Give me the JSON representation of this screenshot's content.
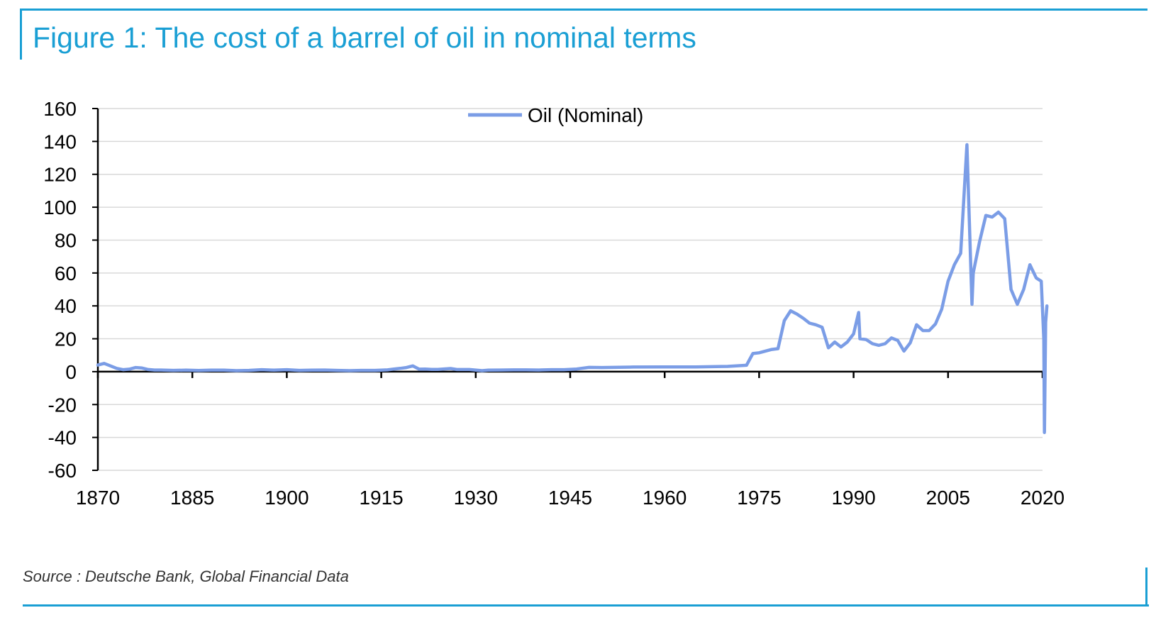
{
  "figure": {
    "title": "Figure 1: The cost of a barrel of oil in nominal terms",
    "source": "Source : Deutsche Bank, Global Financial Data",
    "accent_color": "#1a9fd4"
  },
  "chart_data": {
    "type": "line",
    "title": "Figure 1: The cost of a barrel of oil in nominal terms",
    "xlabel": "",
    "ylabel": "",
    "xlim": [
      1870,
      2020
    ],
    "ylim": [
      -60,
      160
    ],
    "x_ticks": [
      1870,
      1885,
      1900,
      1915,
      1930,
      1945,
      1960,
      1975,
      1990,
      2005,
      2020
    ],
    "y_ticks": [
      160,
      140,
      120,
      100,
      80,
      60,
      40,
      20,
      0,
      -20,
      -40,
      -60
    ],
    "grid": true,
    "legend_position": "top-center",
    "series": [
      {
        "name": "Oil (Nominal)",
        "color": "#7b9de6",
        "points": [
          [
            1870,
            4
          ],
          [
            1871,
            5
          ],
          [
            1872,
            3.5
          ],
          [
            1873,
            2
          ],
          [
            1874,
            1.2
          ],
          [
            1875,
            1.5
          ],
          [
            1876,
            2.5
          ],
          [
            1877,
            2.2
          ],
          [
            1878,
            1.3
          ],
          [
            1879,
            1
          ],
          [
            1880,
            1
          ],
          [
            1882,
            0.8
          ],
          [
            1884,
            0.9
          ],
          [
            1886,
            0.7
          ],
          [
            1888,
            0.9
          ],
          [
            1890,
            0.9
          ],
          [
            1892,
            0.6
          ],
          [
            1894,
            0.8
          ],
          [
            1896,
            1.2
          ],
          [
            1898,
            0.9
          ],
          [
            1900,
            1.2
          ],
          [
            1902,
            0.8
          ],
          [
            1904,
            0.9
          ],
          [
            1906,
            1
          ],
          [
            1908,
            0.8
          ],
          [
            1910,
            0.6
          ],
          [
            1912,
            0.8
          ],
          [
            1914,
            0.8
          ],
          [
            1916,
            1.1
          ],
          [
            1917,
            1.6
          ],
          [
            1918,
            2
          ],
          [
            1919,
            2.5
          ],
          [
            1920,
            3.5
          ],
          [
            1921,
            1.5
          ],
          [
            1922,
            1.6
          ],
          [
            1923,
            1.4
          ],
          [
            1924,
            1.4
          ],
          [
            1926,
            1.9
          ],
          [
            1927,
            1.3
          ],
          [
            1929,
            1.3
          ],
          [
            1931,
            0.6
          ],
          [
            1932,
            0.9
          ],
          [
            1934,
            1
          ],
          [
            1936,
            1.1
          ],
          [
            1938,
            1.1
          ],
          [
            1940,
            1
          ],
          [
            1942,
            1.2
          ],
          [
            1944,
            1.2
          ],
          [
            1946,
            1.6
          ],
          [
            1948,
            2.6
          ],
          [
            1950,
            2.5
          ],
          [
            1955,
            2.8
          ],
          [
            1960,
            2.9
          ],
          [
            1965,
            2.9
          ],
          [
            1970,
            3.2
          ],
          [
            1973,
            3.9
          ],
          [
            1974,
            11
          ],
          [
            1975,
            11.5
          ],
          [
            1976,
            12.5
          ],
          [
            1977,
            13.5
          ],
          [
            1978,
            14
          ],
          [
            1979,
            31
          ],
          [
            1980,
            37
          ],
          [
            1981,
            35
          ],
          [
            1982,
            32.5
          ],
          [
            1983,
            29.5
          ],
          [
            1984,
            28.5
          ],
          [
            1985,
            27
          ],
          [
            1986,
            14.5
          ],
          [
            1987,
            18
          ],
          [
            1988,
            15
          ],
          [
            1989,
            18
          ],
          [
            1990,
            23
          ],
          [
            1990.8,
            36
          ],
          [
            1991,
            20
          ],
          [
            1992,
            19.5
          ],
          [
            1993,
            17
          ],
          [
            1994,
            16
          ],
          [
            1995,
            17
          ],
          [
            1996,
            20.5
          ],
          [
            1997,
            19
          ],
          [
            1998,
            12.5
          ],
          [
            1999,
            17.5
          ],
          [
            2000,
            28.5
          ],
          [
            2001,
            25
          ],
          [
            2002,
            25
          ],
          [
            2003,
            29
          ],
          [
            2004,
            38
          ],
          [
            2005,
            55
          ],
          [
            2006,
            65
          ],
          [
            2007,
            72
          ],
          [
            2008,
            138
          ],
          [
            2008.8,
            41
          ],
          [
            2009,
            60
          ],
          [
            2010,
            79
          ],
          [
            2011,
            95
          ],
          [
            2012,
            94
          ],
          [
            2013,
            97
          ],
          [
            2014,
            93
          ],
          [
            2015,
            50
          ],
          [
            2016,
            41
          ],
          [
            2017,
            50
          ],
          [
            2018,
            65
          ],
          [
            2019,
            57
          ],
          [
            2019.8,
            55
          ],
          [
            2020.2,
            20
          ],
          [
            2020.3,
            -37
          ],
          [
            2020.5,
            30
          ],
          [
            2020.7,
            40
          ]
        ]
      }
    ]
  }
}
